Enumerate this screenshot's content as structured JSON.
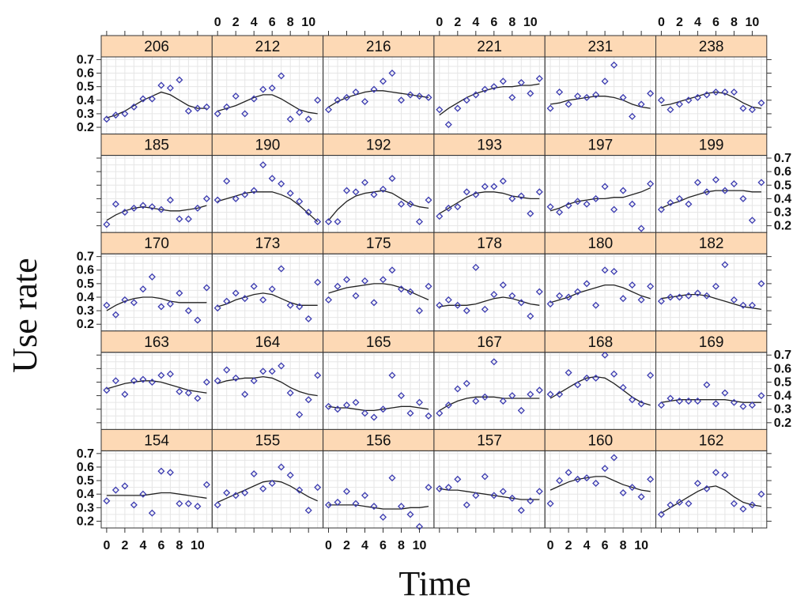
{
  "chart_data": {
    "type": "scatter",
    "title": "",
    "xlabel": "Time",
    "ylabel": "Use rate",
    "xlim": [
      -0.6,
      11.6
    ],
    "ylim": [
      0.15,
      0.72
    ],
    "x_ticks": [
      "0",
      "2",
      "4",
      "6",
      "8",
      "10"
    ],
    "x_tick_values": [
      0,
      2,
      4,
      6,
      8,
      10
    ],
    "y_ticks": [
      "0.2",
      "0.3",
      "0.4",
      "0.5",
      "0.6",
      "0.7"
    ],
    "y_tick_values": [
      0.2,
      0.3,
      0.4,
      0.5,
      0.6,
      0.7
    ],
    "strip_color": "#fdd9b5",
    "point_color": "#3b3bb0",
    "line_color": "#222222",
    "grid": true,
    "panels": [
      {
        "id": "206",
        "row": 0,
        "col": 0,
        "points": [
          0.26,
          0.29,
          0.3,
          0.35,
          0.41,
          0.41,
          0.51,
          0.49,
          0.55,
          0.32,
          0.34,
          0.35
        ],
        "smooth": [
          0.27,
          0.29,
          0.32,
          0.36,
          0.4,
          0.43,
          0.46,
          0.44,
          0.4,
          0.36,
          0.34,
          0.34
        ]
      },
      {
        "id": "212",
        "row": 0,
        "col": 1,
        "points": [
          0.3,
          0.35,
          0.43,
          0.3,
          0.41,
          0.48,
          0.49,
          0.58,
          0.26,
          0.31,
          0.26,
          0.4
        ],
        "smooth": [
          0.32,
          0.34,
          0.36,
          0.39,
          0.42,
          0.44,
          0.44,
          0.41,
          0.37,
          0.33,
          0.31,
          0.3
        ]
      },
      {
        "id": "216",
        "row": 0,
        "col": 2,
        "points": [
          0.33,
          0.4,
          0.42,
          0.46,
          0.39,
          0.48,
          0.54,
          0.6,
          0.4,
          0.44,
          0.43,
          0.42
        ],
        "smooth": [
          0.35,
          0.39,
          0.42,
          0.44,
          0.46,
          0.47,
          0.47,
          0.46,
          0.45,
          0.44,
          0.43,
          0.42
        ]
      },
      {
        "id": "221",
        "row": 0,
        "col": 3,
        "points": [
          0.33,
          0.22,
          0.34,
          0.4,
          0.44,
          0.48,
          0.5,
          0.54,
          0.42,
          0.53,
          0.45,
          0.56
        ],
        "smooth": [
          0.29,
          0.34,
          0.38,
          0.42,
          0.45,
          0.47,
          0.49,
          0.5,
          0.5,
          0.51,
          0.51,
          0.52
        ]
      },
      {
        "id": "231",
        "row": 0,
        "col": 4,
        "points": [
          0.34,
          0.46,
          0.37,
          0.43,
          0.42,
          0.44,
          0.54,
          0.66,
          0.42,
          0.28,
          0.37,
          0.45
        ],
        "smooth": [
          0.37,
          0.38,
          0.4,
          0.41,
          0.42,
          0.43,
          0.43,
          0.42,
          0.4,
          0.37,
          0.35,
          0.34
        ]
      },
      {
        "id": "238",
        "row": 0,
        "col": 5,
        "points": [
          0.4,
          0.33,
          0.37,
          0.4,
          0.42,
          0.44,
          0.46,
          0.46,
          0.46,
          0.34,
          0.33,
          0.38
        ],
        "smooth": [
          0.36,
          0.37,
          0.39,
          0.41,
          0.43,
          0.45,
          0.46,
          0.45,
          0.42,
          0.38,
          0.35,
          0.34
        ]
      },
      {
        "id": "185",
        "row": 1,
        "col": 0,
        "points": [
          0.21,
          0.36,
          0.3,
          0.33,
          0.35,
          0.34,
          0.32,
          0.39,
          0.25,
          0.25,
          0.33,
          0.4
        ],
        "smooth": [
          0.24,
          0.28,
          0.31,
          0.33,
          0.34,
          0.33,
          0.32,
          0.31,
          0.31,
          0.32,
          0.33,
          0.35
        ]
      },
      {
        "id": "190",
        "row": 1,
        "col": 1,
        "points": [
          0.39,
          0.53,
          0.4,
          0.43,
          0.46,
          0.65,
          0.55,
          0.51,
          0.44,
          0.38,
          0.3,
          0.23
        ],
        "smooth": [
          0.38,
          0.4,
          0.42,
          0.44,
          0.45,
          0.45,
          0.45,
          0.43,
          0.4,
          0.35,
          0.29,
          0.23
        ]
      },
      {
        "id": "192",
        "row": 1,
        "col": 2,
        "points": [
          0.23,
          0.23,
          0.46,
          0.45,
          0.52,
          0.43,
          0.47,
          0.55,
          0.36,
          0.36,
          0.23,
          0.39
        ],
        "smooth": [
          0.24,
          0.32,
          0.38,
          0.42,
          0.44,
          0.45,
          0.46,
          0.44,
          0.4,
          0.36,
          0.34,
          0.33
        ]
      },
      {
        "id": "193",
        "row": 1,
        "col": 3,
        "points": [
          0.27,
          0.33,
          0.34,
          0.45,
          0.43,
          0.49,
          0.49,
          0.53,
          0.4,
          0.42,
          0.29,
          0.45
        ],
        "smooth": [
          0.29,
          0.33,
          0.37,
          0.41,
          0.44,
          0.45,
          0.45,
          0.44,
          0.42,
          0.41,
          0.4,
          0.4
        ]
      },
      {
        "id": "197",
        "row": 1,
        "col": 4,
        "points": [
          0.34,
          0.3,
          0.35,
          0.38,
          0.36,
          0.4,
          0.49,
          0.32,
          0.46,
          0.36,
          0.18,
          0.51
        ],
        "smooth": [
          0.31,
          0.33,
          0.36,
          0.38,
          0.39,
          0.4,
          0.4,
          0.41,
          0.41,
          0.43,
          0.45,
          0.48
        ]
      },
      {
        "id": "199",
        "row": 1,
        "col": 5,
        "points": [
          0.32,
          0.37,
          0.4,
          0.36,
          0.52,
          0.45,
          0.54,
          0.46,
          0.51,
          0.4,
          0.24,
          0.52
        ],
        "smooth": [
          0.33,
          0.36,
          0.38,
          0.41,
          0.43,
          0.45,
          0.46,
          0.46,
          0.46,
          0.46,
          0.45,
          0.45
        ]
      },
      {
        "id": "170",
        "row": 2,
        "col": 0,
        "points": [
          0.34,
          0.27,
          0.38,
          0.36,
          0.46,
          0.55,
          0.33,
          0.35,
          0.43,
          0.3,
          0.23,
          0.47
        ],
        "smooth": [
          0.3,
          0.34,
          0.37,
          0.39,
          0.4,
          0.4,
          0.39,
          0.37,
          0.36,
          0.36,
          0.36,
          0.36
        ]
      },
      {
        "id": "173",
        "row": 2,
        "col": 1,
        "points": [
          0.32,
          0.37,
          0.43,
          0.39,
          0.48,
          0.38,
          0.46,
          0.61,
          0.34,
          0.33,
          0.24,
          0.51
        ],
        "smooth": [
          0.33,
          0.35,
          0.38,
          0.4,
          0.42,
          0.43,
          0.42,
          0.39,
          0.36,
          0.34,
          0.34,
          0.34
        ]
      },
      {
        "id": "175",
        "row": 2,
        "col": 2,
        "points": [
          0.38,
          0.48,
          0.53,
          0.41,
          0.52,
          0.36,
          0.53,
          0.6,
          0.46,
          0.44,
          0.3,
          0.48
        ],
        "smooth": [
          0.43,
          0.45,
          0.47,
          0.48,
          0.49,
          0.5,
          0.5,
          0.49,
          0.47,
          0.44,
          0.41,
          0.38
        ]
      },
      {
        "id": "178",
        "row": 2,
        "col": 3,
        "points": [
          0.34,
          0.38,
          0.34,
          0.3,
          0.62,
          0.31,
          0.42,
          0.49,
          0.41,
          0.36,
          0.26,
          0.44
        ],
        "smooth": [
          0.33,
          0.34,
          0.34,
          0.34,
          0.35,
          0.37,
          0.39,
          0.4,
          0.39,
          0.37,
          0.35,
          0.34
        ]
      },
      {
        "id": "180",
        "row": 2,
        "col": 4,
        "points": [
          0.35,
          0.41,
          0.4,
          0.44,
          0.5,
          0.34,
          0.6,
          0.59,
          0.39,
          0.49,
          0.38,
          0.48
        ],
        "smooth": [
          0.36,
          0.38,
          0.4,
          0.43,
          0.45,
          0.47,
          0.49,
          0.49,
          0.47,
          0.44,
          0.41,
          0.39
        ]
      },
      {
        "id": "182",
        "row": 2,
        "col": 5,
        "points": [
          0.37,
          0.4,
          0.4,
          0.41,
          0.43,
          0.41,
          0.48,
          0.64,
          0.38,
          0.34,
          0.34,
          0.5
        ],
        "smooth": [
          0.39,
          0.4,
          0.41,
          0.42,
          0.42,
          0.41,
          0.39,
          0.37,
          0.35,
          0.33,
          0.32,
          0.31
        ]
      },
      {
        "id": "163",
        "row": 3,
        "col": 0,
        "points": [
          0.44,
          0.51,
          0.41,
          0.51,
          0.52,
          0.5,
          0.55,
          0.56,
          0.43,
          0.42,
          0.38,
          0.5
        ],
        "smooth": [
          0.45,
          0.47,
          0.49,
          0.5,
          0.51,
          0.51,
          0.5,
          0.48,
          0.46,
          0.44,
          0.43,
          0.42
        ]
      },
      {
        "id": "164",
        "row": 3,
        "col": 1,
        "points": [
          0.51,
          0.59,
          0.53,
          0.41,
          0.51,
          0.58,
          0.58,
          0.62,
          0.42,
          0.26,
          0.37,
          0.55
        ],
        "smooth": [
          0.49,
          0.51,
          0.52,
          0.53,
          0.53,
          0.54,
          0.53,
          0.5,
          0.46,
          0.43,
          0.41,
          0.4
        ]
      },
      {
        "id": "165",
        "row": 3,
        "col": 2,
        "points": [
          0.32,
          0.3,
          0.33,
          0.35,
          0.27,
          0.24,
          0.3,
          0.55,
          0.4,
          0.27,
          0.35,
          0.25
        ],
        "smooth": [
          0.32,
          0.31,
          0.31,
          0.3,
          0.29,
          0.29,
          0.3,
          0.31,
          0.32,
          0.32,
          0.31,
          0.3
        ]
      },
      {
        "id": "167",
        "row": 3,
        "col": 3,
        "points": [
          0.27,
          0.33,
          0.45,
          0.49,
          0.36,
          0.39,
          0.65,
          0.36,
          0.4,
          0.29,
          0.41,
          0.44
        ],
        "smooth": [
          0.29,
          0.33,
          0.36,
          0.38,
          0.39,
          0.39,
          0.39,
          0.38,
          0.38,
          0.38,
          0.38,
          0.38
        ]
      },
      {
        "id": "168",
        "row": 3,
        "col": 4,
        "points": [
          0.41,
          0.41,
          0.57,
          0.48,
          0.53,
          0.53,
          0.7,
          0.56,
          0.46,
          0.37,
          0.34,
          0.55
        ],
        "smooth": [
          0.38,
          0.42,
          0.46,
          0.5,
          0.53,
          0.54,
          0.53,
          0.49,
          0.44,
          0.39,
          0.35,
          0.33
        ]
      },
      {
        "id": "169",
        "row": 3,
        "col": 5,
        "points": [
          0.33,
          0.38,
          0.36,
          0.36,
          0.36,
          0.48,
          0.34,
          0.42,
          0.35,
          0.32,
          0.33,
          0.4
        ],
        "smooth": [
          0.35,
          0.36,
          0.37,
          0.37,
          0.37,
          0.37,
          0.37,
          0.37,
          0.36,
          0.35,
          0.35,
          0.35
        ]
      },
      {
        "id": "154",
        "row": 4,
        "col": 0,
        "points": [
          0.35,
          0.43,
          0.46,
          0.32,
          0.4,
          0.26,
          0.57,
          0.56,
          0.33,
          0.33,
          0.31,
          0.47
        ],
        "smooth": [
          0.39,
          0.39,
          0.39,
          0.39,
          0.39,
          0.4,
          0.41,
          0.41,
          0.4,
          0.39,
          0.38,
          0.37
        ]
      },
      {
        "id": "155",
        "row": 4,
        "col": 1,
        "points": [
          0.32,
          0.41,
          0.39,
          0.41,
          0.55,
          0.44,
          0.48,
          0.6,
          0.54,
          0.43,
          0.28,
          0.45
        ],
        "smooth": [
          0.34,
          0.37,
          0.4,
          0.43,
          0.46,
          0.49,
          0.5,
          0.49,
          0.46,
          0.42,
          0.38,
          0.35
        ]
      },
      {
        "id": "156",
        "row": 4,
        "col": 2,
        "points": [
          0.32,
          0.34,
          0.42,
          0.33,
          0.39,
          0.31,
          0.23,
          0.52,
          0.31,
          0.25,
          0.16,
          0.45
        ],
        "smooth": [
          0.32,
          0.32,
          0.32,
          0.32,
          0.31,
          0.3,
          0.29,
          0.29,
          0.29,
          0.3,
          0.3,
          0.31
        ]
      },
      {
        "id": "157",
        "row": 4,
        "col": 3,
        "points": [
          0.44,
          0.45,
          0.51,
          0.32,
          0.39,
          0.53,
          0.39,
          0.42,
          0.37,
          0.28,
          0.35,
          0.42
        ],
        "smooth": [
          0.44,
          0.43,
          0.43,
          0.42,
          0.41,
          0.4,
          0.39,
          0.38,
          0.37,
          0.36,
          0.36,
          0.36
        ]
      },
      {
        "id": "160",
        "row": 4,
        "col": 4,
        "points": [
          0.33,
          0.5,
          0.56,
          0.51,
          0.52,
          0.48,
          0.59,
          0.67,
          0.41,
          0.45,
          0.38,
          0.51
        ],
        "smooth": [
          0.43,
          0.46,
          0.49,
          0.51,
          0.52,
          0.53,
          0.53,
          0.5,
          0.47,
          0.45,
          0.43,
          0.42
        ]
      },
      {
        "id": "162",
        "row": 4,
        "col": 5,
        "points": [
          0.25,
          0.32,
          0.34,
          0.33,
          0.48,
          0.44,
          0.56,
          0.54,
          0.33,
          0.29,
          0.32,
          0.4
        ],
        "smooth": [
          0.26,
          0.3,
          0.34,
          0.38,
          0.42,
          0.45,
          0.46,
          0.43,
          0.38,
          0.34,
          0.32,
          0.31
        ]
      }
    ]
  }
}
